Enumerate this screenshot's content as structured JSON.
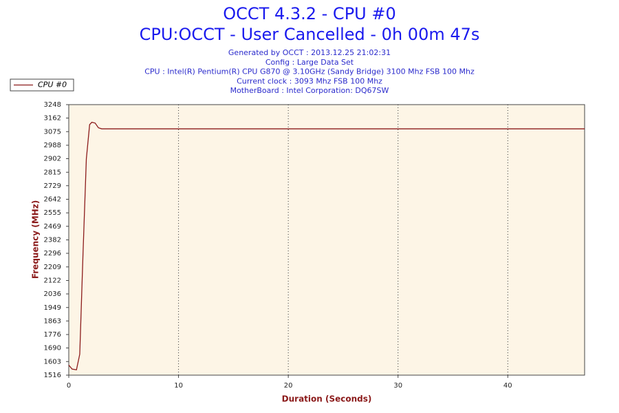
{
  "chart_data": {
    "type": "line",
    "title": "OCCT 4.3.2 - CPU #0",
    "subtitle": "CPU:OCCT - User Cancelled - 0h 00m 47s",
    "annotations": [
      "Generated by OCCT : 2013.12.25 21:02:31",
      "Config : Large Data Set",
      "CPU : Intel(R) Pentium(R) CPU G870 @ 3.10GHz (Sandy Bridge) 3100 Mhz FSB 100 Mhz",
      "Current clock : 3093 Mhz FSB 100 Mhz",
      "MotherBoard : Intel Corporation: DQ67SW"
    ],
    "x_label": "Duration (Seconds)",
    "y_label": "Frequency (MHz)",
    "x": [
      0,
      0.3,
      0.7,
      1.0,
      1.3,
      1.6,
      1.9,
      2.1,
      2.4,
      2.7,
      3.0,
      47
    ],
    "series": [
      {
        "name": "CPU #0",
        "color": "#8b1a1a",
        "values": [
          1580,
          1555,
          1550,
          1650,
          2300,
          2900,
          3120,
          3135,
          3130,
          3100,
          3093,
          3093
        ]
      }
    ],
    "xlim": [
      0,
      47
    ],
    "xticks": [
      0,
      10,
      20,
      30,
      40
    ],
    "ylim": [
      1516,
      3248
    ],
    "yticks": [
      1516,
      1603,
      1690,
      1776,
      1863,
      1949,
      2036,
      2122,
      2209,
      2296,
      2382,
      2469,
      2555,
      2642,
      2729,
      2815,
      2902,
      2988,
      3075,
      3162,
      3248
    ],
    "grid": true
  }
}
